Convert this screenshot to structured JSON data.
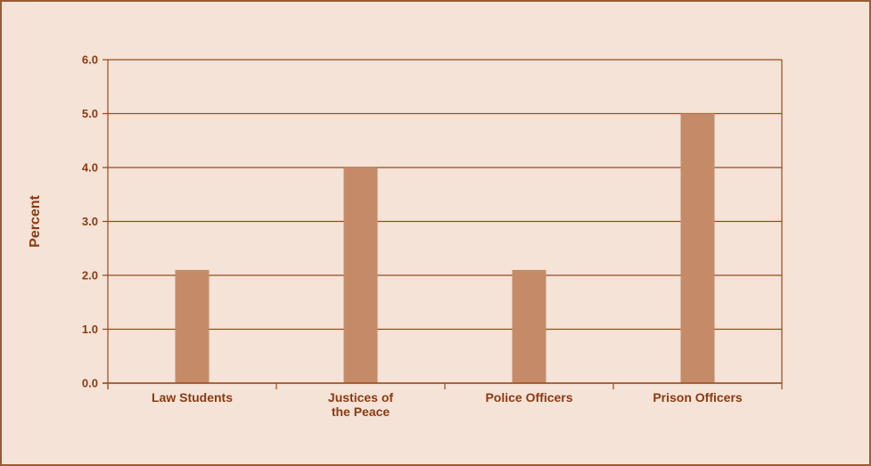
{
  "colors": {
    "background": "#f4e3d6",
    "frame": "#9a5a32",
    "grid": "#9a4a1c",
    "bar": "#c58b68",
    "text": "#8b3a12"
  },
  "chart_data": {
    "type": "bar",
    "title": "",
    "xlabel": "",
    "ylabel": "Percent",
    "categories": [
      [
        "Law Students"
      ],
      [
        "Justices of",
        "the Peace"
      ],
      [
        "Police Officers"
      ],
      [
        "Prison Officers"
      ]
    ],
    "values": [
      2.1,
      4.0,
      2.1,
      5.0
    ],
    "ylim": [
      0,
      6
    ],
    "yticks": [
      0,
      1,
      2,
      3,
      4,
      5,
      6
    ],
    "ytick_labels": [
      "0.0",
      "1.0",
      "2.0",
      "3.0",
      "4.0",
      "5.0",
      "6.0"
    ],
    "grid": true,
    "legend": "none"
  }
}
